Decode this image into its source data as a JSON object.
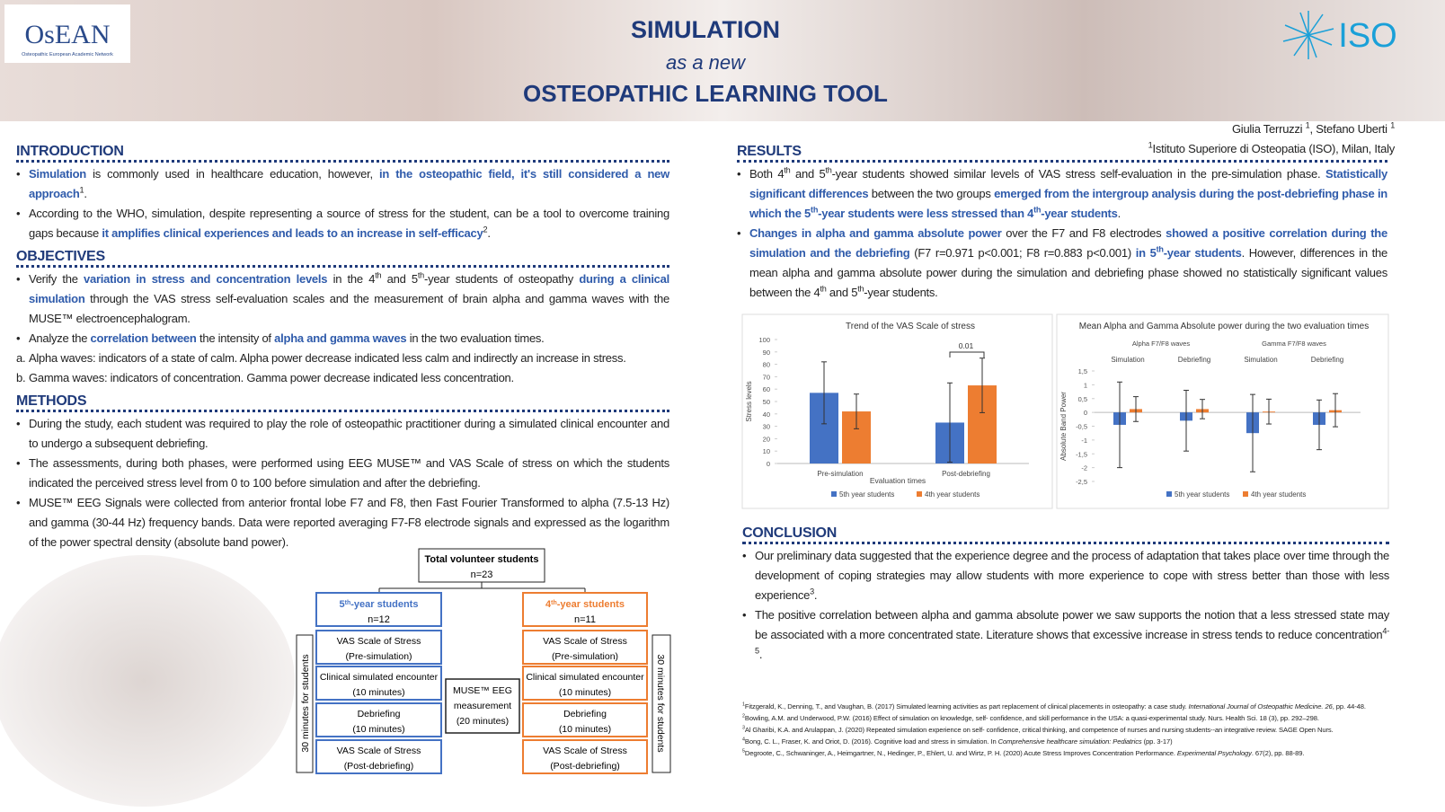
{
  "header": {
    "logo_left": "OsEAN",
    "logo_left_sub": "Osteopathic European Academic Network",
    "title": "SIMULATION",
    "subtitle": "as a new",
    "title2": "OSTEOPATHIC LEARNING TOOL",
    "logo_right": "ISO",
    "authors": [
      {
        "t": "Giulia Terruzzi "
      },
      {
        "t": "1",
        "s": "sup"
      },
      {
        "t": ", Stefano Uberti "
      },
      {
        "t": "1",
        "s": "sup"
      }
    ],
    "affiliation": [
      {
        "t": "1",
        "s": "sup"
      },
      {
        "t": "Istituto Superiore di Osteopatia (ISO), Milan, Italy"
      }
    ]
  },
  "introduction": {
    "heading": "INTRODUCTION",
    "items": [
      {
        "marker": "•",
        "text": [
          {
            "t": "Simulation",
            "s": "b"
          },
          {
            "t": " is commonly used in healthcare education, however, "
          },
          {
            "t": "in the osteopathic field, it's still considered a new approach",
            "s": "b"
          },
          {
            "t": "1",
            "s": "sup"
          },
          {
            "t": "."
          }
        ]
      },
      {
        "marker": "•",
        "text": [
          {
            "t": "According to the WHO, simulation, despite representing a source of stress for the student, can be a tool to overcome training gaps because "
          },
          {
            "t": "it amplifies clinical experiences and leads to an increase in self-efficacy",
            "s": "b"
          },
          {
            "t": "2",
            "s": "sup"
          },
          {
            "t": "."
          }
        ]
      }
    ]
  },
  "objectives": {
    "heading": "OBJECTIVES",
    "items": [
      {
        "marker": "•",
        "text": [
          {
            "t": "Verify the "
          },
          {
            "t": "variation in stress and concentration levels",
            "s": "b"
          },
          {
            "t": " in the 4"
          },
          {
            "t": "th",
            "s": "sup"
          },
          {
            "t": " and 5"
          },
          {
            "t": "th",
            "s": "sup"
          },
          {
            "t": "-year students of osteopathy "
          },
          {
            "t": "during a clinical simulation",
            "s": "b"
          },
          {
            "t": " through the VAS stress self-evaluation scales and the measurement of brain alpha and gamma waves with the MUSE™ electroencephalogram."
          }
        ]
      },
      {
        "marker": "•",
        "text": [
          {
            "t": "Analyze the "
          },
          {
            "t": "correlation between",
            "s": "b"
          },
          {
            "t": " the intensity of "
          },
          {
            "t": "alpha and gamma waves",
            "s": "b"
          },
          {
            "t": " in the two evaluation times."
          }
        ]
      },
      {
        "marker": "a.",
        "text": [
          {
            "t": "Alpha waves: indicators of a state of calm. Alpha power decrease indicated less calm and indirectly an increase in stress."
          }
        ]
      },
      {
        "marker": "b.",
        "text": [
          {
            "t": "Gamma waves: indicators of concentration. Gamma power decrease indicated less concentration."
          }
        ]
      }
    ]
  },
  "methods": {
    "heading": "METHODS",
    "items": [
      {
        "marker": "•",
        "text": [
          {
            "t": "During the study, each student was required to play the role of osteopathic practitioner during a simulated clinical encounter and to undergo a subsequent debriefing."
          }
        ]
      },
      {
        "marker": "•",
        "text": [
          {
            "t": "The assessments, during both phases, were performed using EEG MUSE™ and VAS Scale of stress on which the students indicated the perceived stress level from 0 to 100 before simulation and after the debriefing."
          }
        ]
      },
      {
        "marker": "•",
        "text": [
          {
            "t": "MUSE™ EEG Signals were collected from anterior frontal lobe F7 and F8, then Fast Fourier Transformed to alpha (7.5-13 Hz) and gamma (30-44 Hz) frequency bands. Data were reported averaging F7-F8 electrode signals and expressed as the logarithm of the power spectral density (absolute band power)."
          }
        ]
      }
    ]
  },
  "results": {
    "heading": "RESULTS",
    "items": [
      {
        "marker": "•",
        "text": [
          {
            "t": "Both 4"
          },
          {
            "t": "th",
            "s": "sup"
          },
          {
            "t": " and 5"
          },
          {
            "t": "th",
            "s": "sup"
          },
          {
            "t": "-year students showed similar levels of VAS stress self-evaluation in the pre-simulation phase. "
          },
          {
            "t": "Statistically significant differences",
            "s": "b"
          },
          {
            "t": " between the two groups "
          },
          {
            "t": "emerged from the intergroup analysis during the post-debriefing phase in which the 5",
            "s": "b"
          },
          {
            "t": "th",
            "s": "bsup"
          },
          {
            "t": "-year students were less stressed than 4",
            "s": "b"
          },
          {
            "t": "th",
            "s": "bsup"
          },
          {
            "t": "-year students",
            "s": "b"
          },
          {
            "t": "."
          }
        ]
      },
      {
        "marker": "•",
        "text": [
          {
            "t": "Changes in alpha and gamma absolute power",
            "s": "b"
          },
          {
            "t": " over the F7 and F8 electrodes "
          },
          {
            "t": "showed a positive correlation during the simulation and the debriefing",
            "s": "b"
          },
          {
            "t": " (F7 r=0.971 p<0.001; F8 r=0.883 p<0.001) "
          },
          {
            "t": "in 5",
            "s": "b"
          },
          {
            "t": "th",
            "s": "bsup"
          },
          {
            "t": "-year students",
            "s": "b"
          },
          {
            "t": ". However, differences in the mean alpha and gamma absolute power during the simulation and debriefing phase showed no statistically significant values between the 4"
          },
          {
            "t": "th",
            "s": "sup"
          },
          {
            "t": " and 5"
          },
          {
            "t": "th",
            "s": "sup"
          },
          {
            "t": "-year students."
          }
        ]
      }
    ]
  },
  "chart_data": [
    {
      "type": "bar",
      "title": "Trend of the VAS Scale of stress",
      "y_label": "Stress levels",
      "x_label": "Evaluation times",
      "annotation": "0.01",
      "categories": [
        "Pre-simulation",
        "Post-debriefing"
      ],
      "series": [
        {
          "name": "5th year students",
          "color": "#4472c4",
          "values": [
            57,
            33
          ],
          "errors": [
            25,
            32
          ]
        },
        {
          "name": "4th year students",
          "color": "#ed7d31",
          "values": [
            42,
            63
          ],
          "errors": [
            14,
            22
          ]
        }
      ],
      "ylim": [
        0,
        100
      ],
      "yticks": [
        0,
        10,
        20,
        30,
        40,
        50,
        60,
        70,
        80,
        90,
        100
      ],
      "grid": false
    },
    {
      "type": "bar",
      "title": "Mean Alpha and Gamma Absolute power during the two evaluation times",
      "y_label": "Absolute Band Power",
      "groups": [
        "Alpha F7/F8 waves",
        "Gamma F7/F8 waves"
      ],
      "categories": [
        "Simulation",
        "Debriefing",
        "Simulation",
        "Debriefing"
      ],
      "series": [
        {
          "name": "5th year students",
          "color": "#4472c4",
          "values": [
            -0.45,
            -0.3,
            -0.75,
            -0.45
          ],
          "errors": [
            1.55,
            1.1,
            1.4,
            0.9
          ]
        },
        {
          "name": "4th year students",
          "color": "#ed7d31",
          "values": [
            0.12,
            0.12,
            0.03,
            0.08
          ],
          "errors": [
            0.45,
            0.35,
            0.45,
            0.6
          ]
        }
      ],
      "ylim": [
        -2.5,
        1.5
      ],
      "yticks": [
        {
          "value": -2.5,
          "label": "-2,5"
        },
        -2,
        {
          "value": -1.5,
          "label": "-1,5"
        },
        -1,
        {
          "value": -0.5,
          "label": "-0,5"
        },
        0,
        {
          "value": 0.5,
          "label": "0,5"
        },
        1,
        {
          "value": 1.5,
          "label": "1,5"
        }
      ],
      "grid": false
    }
  ],
  "conclusion": {
    "heading": "CONCLUSION",
    "items": [
      {
        "marker": "•",
        "text": [
          {
            "t": "Our preliminary data suggested that the experience degree and the process of adaptation that takes place over time through the development of coping strategies may allow students with more experience to cope with stress better than those with less experience"
          },
          {
            "t": "3",
            "s": "sup"
          },
          {
            "t": "."
          }
        ]
      },
      {
        "marker": "•",
        "text": [
          {
            "t": "The positive correlation between alpha and gamma absolute power we saw supports the notion that a less stressed state may be associated with a more concentrated state. Literature shows that excessive increase in stress tends to reduce concentration"
          },
          {
            "t": "4-5",
            "s": "sup"
          },
          {
            "t": "."
          }
        ]
      }
    ]
  },
  "references": [
    [
      {
        "t": "1",
        "s": "sup"
      },
      {
        "t": "Fitzgerald, K., Denning, T., and Vaughan, B. (2017) Simulated learning activities as part replacement of clinical placements in osteopathy: a case study. "
      },
      {
        "t": "International Journal of Osteopathic Medicine. 26",
        "s": "i"
      },
      {
        "t": ", pp. 44-48."
      }
    ],
    [
      {
        "t": "2",
        "s": "sup"
      },
      {
        "t": "Bowling, A.M. and Underwood, P.W. (2016) Effect of simulation on knowledge, self- confidence, and skill performance in the USA: a quasi-experimental study. Nurs. Health Sci. 18 (3), pp. 292–298."
      }
    ],
    [
      {
        "t": "3",
        "s": "sup"
      },
      {
        "t": "Al Gharibi, K.A. and Arulappan, J. (2020) Repeated simulation experience on self- confidence, critical thinking, and competence of nurses and nursing students--an integrative review. SAGE Open Nurs."
      }
    ],
    [
      {
        "t": "4",
        "s": "sup"
      },
      {
        "t": "Bong, C. L., Fraser, K. and Oriot, D. (2016). Cognitive load and stress in simulation. In "
      },
      {
        "t": "Comprehensive healthcare simulation: Pediatrics",
        "s": "i"
      },
      {
        "t": " (pp. 3-17)"
      }
    ],
    [
      {
        "t": "5",
        "s": "sup"
      },
      {
        "t": "Degroote, C., Schwaninger, A., Heimgartner, N., Hedinger, P., Ehlert, U. and Wirtz, P. H. (2020) Acute Stress Improves Concentration Performance. "
      },
      {
        "t": "Experimental Psychology",
        "s": "i"
      },
      {
        "t": ". 67(2), pp. 88-89."
      }
    ]
  ],
  "flowchart": {
    "total": [
      "Total volunteer students",
      "n=23"
    ],
    "left": {
      "title": [
        {
          "t": "5"
        },
        {
          "t": "th",
          "s": "sup"
        },
        {
          "t": "-year students"
        }
      ],
      "n": "n=12",
      "steps": [
        [
          "VAS Scale of Stress",
          "(Pre-simulation)"
        ],
        [
          "Clinical simulated encounter",
          "(10 minutes)"
        ],
        [
          "Debriefing",
          "(10 minutes)"
        ],
        [
          "VAS Scale of Stress",
          "(Post-debriefing)"
        ]
      ]
    },
    "right": {
      "title": [
        {
          "t": "4"
        },
        {
          "t": "th",
          "s": "sup"
        },
        {
          "t": "-year students"
        }
      ],
      "n": "n=11",
      "steps": [
        [
          "VAS Scale of Stress",
          "(Pre-simulation)"
        ],
        [
          "Clinical simulated encounter",
          "(10 minutes)"
        ],
        [
          "Debriefing",
          "(10 minutes)"
        ],
        [
          "VAS Scale of Stress",
          "(Post-debriefing)"
        ]
      ]
    },
    "center": [
      "MUSE™ EEG",
      "measurement",
      "(20 minutes)"
    ],
    "side_left": "30 minutes for students",
    "side_right": "30 minutes for students"
  }
}
